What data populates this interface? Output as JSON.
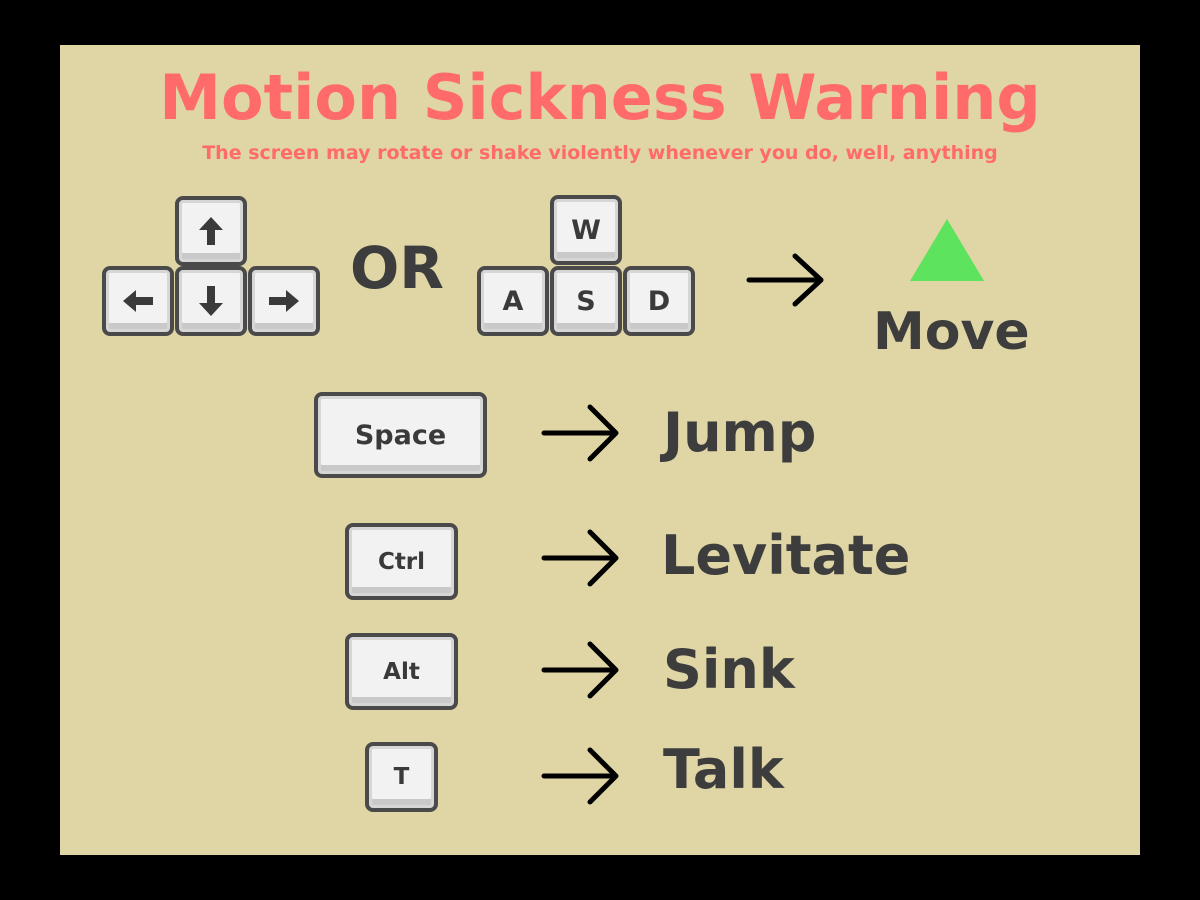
{
  "title": "Motion Sickness Warning",
  "subtitle": "The screen may rotate or shake violently whenever you do, well, anything",
  "connector": "OR",
  "colors": {
    "background": "#dfd5a5",
    "frame": "#000000",
    "warning": "#ff6b6b",
    "text": "#3d3d3d",
    "move_indicator": "#5de35d"
  },
  "arrow_keys": {
    "up_icon": "arrow-up-icon",
    "left_icon": "arrow-left-icon",
    "down_icon": "arrow-down-icon",
    "right_icon": "arrow-right-icon"
  },
  "wasd_keys": {
    "w": "W",
    "a": "A",
    "s": "S",
    "d": "D"
  },
  "move": {
    "indicator_icon": "green-triangle-icon",
    "label": "Move"
  },
  "bindings": [
    {
      "key": "Space",
      "action": "Jump"
    },
    {
      "key": "Ctrl",
      "action": "Levitate"
    },
    {
      "key": "Alt",
      "action": "Sink"
    },
    {
      "key": "T",
      "action": "Talk"
    }
  ]
}
